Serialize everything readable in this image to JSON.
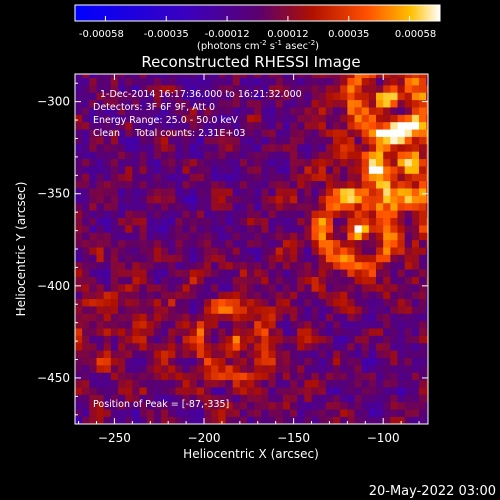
{
  "chart_data": {
    "type": "heatmap",
    "title": "Reconstructed RHESSI Image",
    "xlabel": "Heliocentric X (arcsec)",
    "ylabel": "Heliocentric Y (arcsec)",
    "xlim": [
      -272,
      -75
    ],
    "ylim": [
      -475,
      -285
    ],
    "x_ticks": [
      -250,
      -200,
      -150,
      -100
    ],
    "y_ticks": [
      -300,
      -350,
      -400,
      -450
    ],
    "colorbar": {
      "ticks": [
        "-0.00058",
        "-0.00035",
        "-0.00012",
        "0.00012",
        "0.00035",
        "0.00058"
      ],
      "range": [
        -0.00058,
        0.00058
      ],
      "unit_label": "(photons cm",
      "unit_sup1": "-2",
      "unit_mid": " s",
      "unit_sup2": "-1",
      "unit_mid2": " asec",
      "unit_sup3": "-2",
      "unit_end": ")"
    },
    "annotations": [
      "1-Dec-2014 16:17:36.000 to 16:21:32.000",
      "Detectors: 3F 6F 9F, Att 0",
      "Energy Range: 25.0 - 50.0 keV",
      "Clean     Total counts: 2.31E+03"
    ],
    "peak_label": "Position of Peak = [-87,-335]",
    "peak": [
      -87,
      -335
    ],
    "sources": [
      {
        "x": -87,
        "y": -335,
        "amp": 0.00058
      },
      {
        "x": -117,
        "y": -372,
        "amp": 0.00052
      },
      {
        "x": -185,
        "y": -432,
        "amp": 0.00038
      },
      {
        "x": -100,
        "y": -300,
        "amp": 0.00046
      },
      {
        "x": -255,
        "y": -425,
        "amp": 0.00022
      }
    ],
    "grid": false
  },
  "footer": {
    "date": "20-May-2022 03:00"
  }
}
